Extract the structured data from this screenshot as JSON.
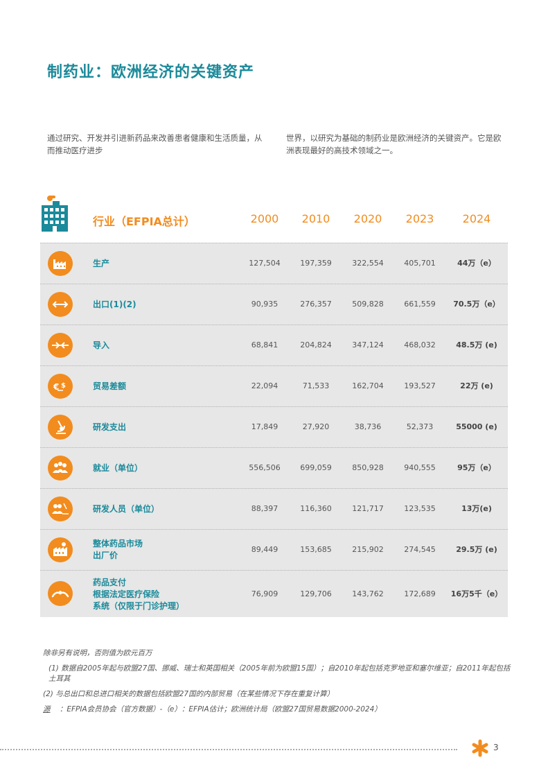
{
  "title": "制药业：欧洲经济的关键资产",
  "intro": {
    "left": "通过研究、开发并引进新药品来改善患者健康和生活质量，从而推动医疗进步",
    "right": "世界，以研究为基础的制药业是欧洲经济的关键资产。它是欧洲表现最好的高技术领域之一。"
  },
  "table": {
    "header_label": "行业（EFPIA总计）",
    "years": [
      "2000",
      "2010",
      "2020",
      "2023",
      "2024"
    ],
    "rows": [
      {
        "icon": "factory-icon",
        "label_lines": [
          "生产"
        ],
        "values": [
          "127,504",
          "197,359",
          "322,554",
          "405,701",
          "44万（e）"
        ]
      },
      {
        "icon": "export-arrows-icon",
        "label_lines": [
          "出口(1)(2)"
        ],
        "values": [
          "90,935",
          "276,357",
          "509,828",
          "661,559",
          "70.5万（e）"
        ]
      },
      {
        "icon": "import-arrows-icon",
        "label_lines": [
          "导入"
        ],
        "values": [
          "68,841",
          "204,824",
          "347,124",
          "468,032",
          "48.5万 (e)"
        ]
      },
      {
        "icon": "currency-icon",
        "label_lines": [
          "贸易差额"
        ],
        "values": [
          "22,094",
          "71,533",
          "162,704",
          "193,527",
          "22万 (e)"
        ]
      },
      {
        "icon": "microscope-icon",
        "label_lines": [
          "研发支出"
        ],
        "values": [
          "17,849",
          "27,920",
          "38,736",
          "52,373",
          "55000 (e)"
        ]
      },
      {
        "icon": "people-icon",
        "label_lines": [
          "就业（单位）"
        ],
        "values": [
          "556,506",
          "699,059",
          "850,928",
          "940,555",
          "95万（e）"
        ]
      },
      {
        "icon": "researchers-icon",
        "label_lines": [
          "研发人员（单位）"
        ],
        "values": [
          "88,397",
          "116,360",
          "121,717",
          "123,535",
          "13万(e)"
        ]
      },
      {
        "icon": "market-icon",
        "label_lines": [
          "整体药品市场",
          "出厂价"
        ],
        "values": [
          "89,449",
          "153,685",
          "215,902",
          "274,545",
          "29.5万 (e)"
        ]
      },
      {
        "icon": "hands-icon",
        "label_lines": [
          "药品支付",
          "根据法定医疗保险",
          "系统（仅限于门诊护理）"
        ],
        "values": [
          "76,909",
          "129,706",
          "143,762",
          "172,689",
          "16万5千（e）"
        ]
      }
    ]
  },
  "notes": {
    "unit": "除非另有说明，否则值为欧元百万",
    "note1": "(1) 数据自2005年起与欧盟27国、挪威、瑞士和英国相关（2005年前为欧盟15国）；自2010年起包括克罗地亚和塞尔维亚；自2011年起包括土耳其",
    "note2": "(2) 与总出口和总进口相关的数据包括欧盟27国的内部贸易（在某些情况下存在重复计算）",
    "source_key": "源",
    "source_text": "：EFPIA会员协会（官方数据）-（e）：EFPIA估计；欧洲统计局（欧盟27国贸易数据2000-2024）"
  },
  "page_number": "3",
  "colors": {
    "teal": "#1b8a9a",
    "orange": "#f28c1e",
    "table_bg": "#e7e7e7"
  }
}
